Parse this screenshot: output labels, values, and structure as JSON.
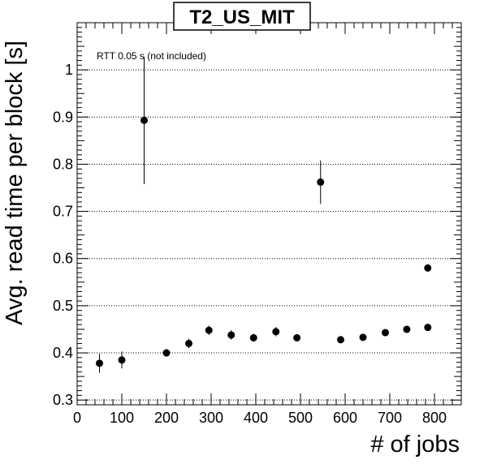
{
  "chart_data": {
    "type": "scatter",
    "title": "T2_US_MIT",
    "xlabel": "# of jobs",
    "ylabel": "Avg. read time per block [s]",
    "annotation": "RTT 0.05 s (not included)",
    "xlim": [
      0,
      860
    ],
    "ylim": [
      0.29,
      1.1
    ],
    "x_ticks": [
      0,
      100,
      200,
      300,
      400,
      500,
      600,
      700,
      800
    ],
    "x_tick_labels": [
      "0",
      "100",
      "200",
      "300",
      "400",
      "500",
      "600",
      "700",
      "800"
    ],
    "y_ticks": [
      0.3,
      0.4,
      0.5,
      0.6,
      0.7,
      0.8,
      0.9,
      1.0
    ],
    "y_tick_labels": [
      "0.3",
      "0.4",
      "0.5",
      "0.6",
      "0.7",
      "0.8",
      "0.9",
      "1"
    ],
    "grid": {
      "horizontal": true,
      "vertical": false,
      "style": "dotted"
    },
    "marker_color": "#000000",
    "points": [
      {
        "x": 50,
        "y": 0.378,
        "err": 0.02
      },
      {
        "x": 100,
        "y": 0.385,
        "err": 0.018
      },
      {
        "x": 150,
        "y": 0.893,
        "err": 0.135
      },
      {
        "x": 200,
        "y": 0.4,
        "err": 0.008
      },
      {
        "x": 250,
        "y": 0.42,
        "err": 0.01
      },
      {
        "x": 295,
        "y": 0.448,
        "err": 0.01
      },
      {
        "x": 345,
        "y": 0.438,
        "err": 0.01
      },
      {
        "x": 395,
        "y": 0.432,
        "err": 0.008
      },
      {
        "x": 445,
        "y": 0.445,
        "err": 0.01
      },
      {
        "x": 492,
        "y": 0.432,
        "err": 0.006
      },
      {
        "x": 545,
        "y": 0.762,
        "err": 0.046
      },
      {
        "x": 590,
        "y": 0.428,
        "err": 0.006
      },
      {
        "x": 640,
        "y": 0.433,
        "err": 0.006
      },
      {
        "x": 690,
        "y": 0.443,
        "err": 0.006
      },
      {
        "x": 738,
        "y": 0.45,
        "err": 0.006
      },
      {
        "x": 785,
        "y": 0.454,
        "err": 0.006
      },
      {
        "x": 785,
        "y": 0.58,
        "err": 0.008
      }
    ]
  }
}
